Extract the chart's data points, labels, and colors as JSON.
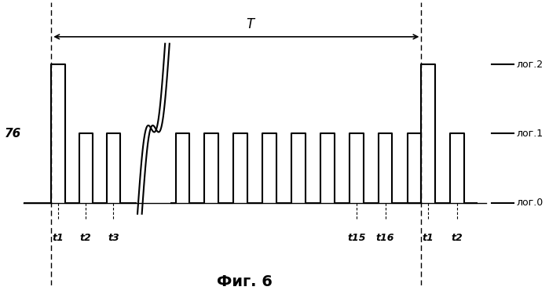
{
  "title": "Фиг. 6",
  "label_76": "76",
  "label_T": "T",
  "legend_labels": [
    "лог.2",
    "лог.1",
    "лог.0"
  ],
  "time_labels": [
    "t1",
    "t2",
    "t3",
    "t15",
    "t16",
    "t1",
    "t2"
  ],
  "background_color": "#ffffff",
  "signal_color": "#000000",
  "levels": {
    "log0": 0.0,
    "log1": 0.5,
    "log2": 1.0
  },
  "fig_width": 6.99,
  "fig_height": 3.75,
  "dpi": 100
}
